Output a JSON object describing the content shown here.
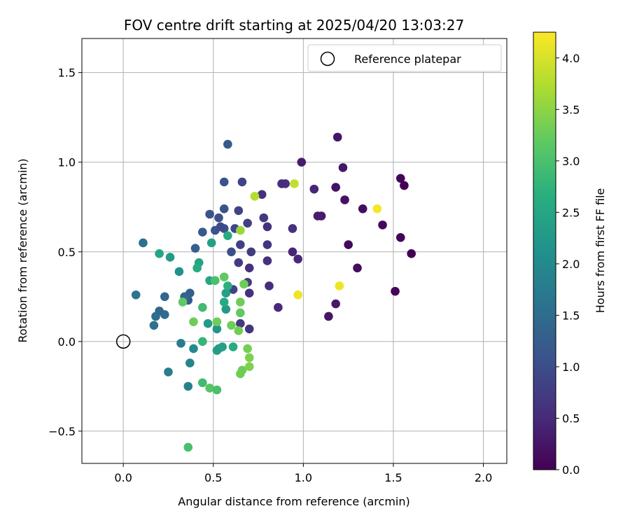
{
  "chart_data": {
    "type": "scatter",
    "title": "FOV centre drift starting at 2025/04/20 13:03:27",
    "xlabel": "Angular distance from reference (arcmin)",
    "ylabel": "Rotation from reference (arcmin)",
    "xlim": [
      -0.23,
      2.13
    ],
    "ylim": [
      -0.68,
      1.69
    ],
    "xticks": [
      0.0,
      0.5,
      1.0,
      1.5,
      2.0
    ],
    "xtick_labels": [
      "0.0",
      "0.5",
      "1.0",
      "1.5",
      "2.0"
    ],
    "yticks": [
      -0.5,
      0.0,
      0.5,
      1.0,
      1.5
    ],
    "ytick_labels": [
      "−0.5",
      "0.0",
      "0.5",
      "1.0",
      "1.5"
    ],
    "grid": true,
    "legend": {
      "placement": "top-right",
      "entries": [
        "Reference platepar"
      ]
    },
    "reference_point": {
      "x": 0.0,
      "y": 0.0,
      "label": "Reference platepar"
    },
    "colorbar": {
      "label": "Hours from first FF file",
      "colormap": "viridis",
      "range": [
        0.0,
        4.25
      ],
      "ticks": [
        0.0,
        0.5,
        1.0,
        1.5,
        2.0,
        2.5,
        3.0,
        3.5,
        4.0
      ],
      "tick_labels": [
        "0.0",
        "0.5",
        "1.0",
        "1.5",
        "2.0",
        "2.5",
        "3.0",
        "3.5",
        "4.0"
      ]
    },
    "points": [
      {
        "x": 1.6,
        "y": 0.49,
        "c": 0.0
      },
      {
        "x": 1.56,
        "y": 0.87,
        "c": 0.0
      },
      {
        "x": 1.54,
        "y": 0.91,
        "c": 0.05
      },
      {
        "x": 1.54,
        "y": 0.58,
        "c": 0.05
      },
      {
        "x": 1.51,
        "y": 0.28,
        "c": 0.05
      },
      {
        "x": 1.44,
        "y": 0.65,
        "c": 0.1
      },
      {
        "x": 1.33,
        "y": 0.74,
        "c": 0.15
      },
      {
        "x": 1.3,
        "y": 0.41,
        "c": 0.15
      },
      {
        "x": 1.25,
        "y": 0.54,
        "c": 0.1
      },
      {
        "x": 1.23,
        "y": 0.79,
        "c": 0.2
      },
      {
        "x": 1.22,
        "y": 0.97,
        "c": 0.25
      },
      {
        "x": 1.19,
        "y": 1.14,
        "c": 0.25
      },
      {
        "x": 1.18,
        "y": 0.86,
        "c": 0.2
      },
      {
        "x": 1.18,
        "y": 0.21,
        "c": 0.3
      },
      {
        "x": 1.14,
        "y": 0.14,
        "c": 0.25
      },
      {
        "x": 1.1,
        "y": 0.7,
        "c": 0.3
      },
      {
        "x": 1.08,
        "y": 0.7,
        "c": 0.35
      },
      {
        "x": 1.06,
        "y": 0.85,
        "c": 0.45
      },
      {
        "x": 0.99,
        "y": 1.0,
        "c": 0.35
      },
      {
        "x": 0.97,
        "y": 0.46,
        "c": 0.5
      },
      {
        "x": 0.94,
        "y": 0.5,
        "c": 0.45
      },
      {
        "x": 0.94,
        "y": 0.63,
        "c": 0.6
      },
      {
        "x": 0.9,
        "y": 0.88,
        "c": 0.6
      },
      {
        "x": 0.88,
        "y": 0.88,
        "c": 0.55
      },
      {
        "x": 0.86,
        "y": 0.19,
        "c": 0.5
      },
      {
        "x": 0.81,
        "y": 0.31,
        "c": 0.55
      },
      {
        "x": 0.8,
        "y": 0.64,
        "c": 0.6
      },
      {
        "x": 0.8,
        "y": 0.54,
        "c": 0.65
      },
      {
        "x": 0.8,
        "y": 0.45,
        "c": 0.6
      },
      {
        "x": 0.78,
        "y": 0.69,
        "c": 0.7
      },
      {
        "x": 0.77,
        "y": 0.82,
        "c": 0.6
      },
      {
        "x": 0.71,
        "y": 0.5,
        "c": 0.75
      },
      {
        "x": 0.7,
        "y": 0.41,
        "c": 0.6
      },
      {
        "x": 0.7,
        "y": 0.27,
        "c": 0.6
      },
      {
        "x": 0.7,
        "y": 0.07,
        "c": 0.65
      },
      {
        "x": 0.69,
        "y": 0.66,
        "c": 0.8
      },
      {
        "x": 0.69,
        "y": 0.33,
        "c": 0.75
      },
      {
        "x": 0.66,
        "y": 0.89,
        "c": 0.85
      },
      {
        "x": 0.65,
        "y": 0.54,
        "c": 0.8
      },
      {
        "x": 0.65,
        "y": 0.1,
        "c": 0.7
      },
      {
        "x": 0.64,
        "y": 0.73,
        "c": 0.85
      },
      {
        "x": 0.64,
        "y": 0.44,
        "c": 0.75
      },
      {
        "x": 0.62,
        "y": 0.63,
        "c": 0.9
      },
      {
        "x": 0.61,
        "y": 0.29,
        "c": 0.85
      },
      {
        "x": 0.6,
        "y": 0.5,
        "c": 1.0
      },
      {
        "x": 0.58,
        "y": 1.1,
        "c": 1.2
      },
      {
        "x": 0.56,
        "y": 0.89,
        "c": 1.1
      },
      {
        "x": 0.56,
        "y": 0.74,
        "c": 1.1
      },
      {
        "x": 0.56,
        "y": 0.63,
        "c": 1.0
      },
      {
        "x": 0.54,
        "y": 0.64,
        "c": 0.95
      },
      {
        "x": 0.53,
        "y": 0.69,
        "c": 1.05
      },
      {
        "x": 0.51,
        "y": 0.62,
        "c": 1.1
      },
      {
        "x": 0.48,
        "y": 0.71,
        "c": 1.1
      },
      {
        "x": 0.44,
        "y": 0.61,
        "c": 1.2
      },
      {
        "x": 0.4,
        "y": 0.52,
        "c": 1.3
      },
      {
        "x": 0.37,
        "y": 0.27,
        "c": 1.3
      },
      {
        "x": 0.36,
        "y": 0.23,
        "c": 1.2
      },
      {
        "x": 0.34,
        "y": 0.25,
        "c": 1.4
      },
      {
        "x": 0.23,
        "y": 0.25,
        "c": 1.4
      },
      {
        "x": 0.23,
        "y": 0.15,
        "c": 1.5
      },
      {
        "x": 0.2,
        "y": 0.17,
        "c": 1.4
      },
      {
        "x": 0.18,
        "y": 0.14,
        "c": 1.5
      },
      {
        "x": 0.17,
        "y": 0.09,
        "c": 1.6
      },
      {
        "x": 0.11,
        "y": 0.55,
        "c": 1.55
      },
      {
        "x": 0.07,
        "y": 0.26,
        "c": 1.65
      },
      {
        "x": 0.25,
        "y": -0.17,
        "c": 1.8
      },
      {
        "x": 0.32,
        "y": -0.01,
        "c": 1.75
      },
      {
        "x": 0.36,
        "y": -0.25,
        "c": 1.85
      },
      {
        "x": 0.37,
        "y": -0.12,
        "c": 1.9
      },
      {
        "x": 0.39,
        "y": -0.04,
        "c": 2.0
      },
      {
        "x": 0.31,
        "y": 0.39,
        "c": 2.1
      },
      {
        "x": 0.26,
        "y": 0.47,
        "c": 2.3
      },
      {
        "x": 0.2,
        "y": 0.49,
        "c": 2.5
      },
      {
        "x": 0.42,
        "y": 0.44,
        "c": 2.45
      },
      {
        "x": 0.41,
        "y": 0.41,
        "c": 2.6
      },
      {
        "x": 0.47,
        "y": 0.1,
        "c": 2.3
      },
      {
        "x": 0.48,
        "y": 0.34,
        "c": 2.5
      },
      {
        "x": 0.49,
        "y": 0.55,
        "c": 2.4
      },
      {
        "x": 0.52,
        "y": 0.07,
        "c": 2.2
      },
      {
        "x": 0.52,
        "y": -0.05,
        "c": 2.4
      },
      {
        "x": 0.53,
        "y": -0.04,
        "c": 2.3
      },
      {
        "x": 0.55,
        "y": -0.03,
        "c": 2.4
      },
      {
        "x": 0.57,
        "y": 0.18,
        "c": 2.3
      },
      {
        "x": 0.57,
        "y": 0.27,
        "c": 2.4
      },
      {
        "x": 0.56,
        "y": 0.22,
        "c": 2.6
      },
      {
        "x": 0.58,
        "y": 0.31,
        "c": 2.7
      },
      {
        "x": 0.58,
        "y": 0.59,
        "c": 2.6
      },
      {
        "x": 0.61,
        "y": -0.03,
        "c": 2.6
      },
      {
        "x": 0.44,
        "y": 0.0,
        "c": 2.8
      },
      {
        "x": 0.44,
        "y": 0.19,
        "c": 2.9
      },
      {
        "x": 0.44,
        "y": -0.23,
        "c": 2.9
      },
      {
        "x": 0.48,
        "y": -0.26,
        "c": 3.1
      },
      {
        "x": 0.52,
        "y": -0.27,
        "c": 3.0
      },
      {
        "x": 0.51,
        "y": 0.34,
        "c": 3.0
      },
      {
        "x": 0.56,
        "y": 0.36,
        "c": 3.2
      },
      {
        "x": 0.33,
        "y": 0.22,
        "c": 3.2
      },
      {
        "x": 0.39,
        "y": 0.11,
        "c": 3.3
      },
      {
        "x": 0.36,
        "y": -0.59,
        "c": 3.0
      },
      {
        "x": 0.52,
        "y": 0.11,
        "c": 3.3
      },
      {
        "x": 0.6,
        "y": 0.09,
        "c": 3.3
      },
      {
        "x": 0.64,
        "y": 0.06,
        "c": 3.3
      },
      {
        "x": 0.65,
        "y": 0.16,
        "c": 3.2
      },
      {
        "x": 0.65,
        "y": 0.22,
        "c": 3.3
      },
      {
        "x": 0.67,
        "y": 0.32,
        "c": 3.3
      },
      {
        "x": 0.66,
        "y": -0.16,
        "c": 3.3
      },
      {
        "x": 0.65,
        "y": -0.18,
        "c": 3.3
      },
      {
        "x": 0.69,
        "y": -0.04,
        "c": 3.35
      },
      {
        "x": 0.7,
        "y": -0.09,
        "c": 3.4
      },
      {
        "x": 0.7,
        "y": -0.14,
        "c": 3.4
      },
      {
        "x": 0.65,
        "y": 0.62,
        "c": 3.6
      },
      {
        "x": 0.73,
        "y": 0.81,
        "c": 3.75
      },
      {
        "x": 0.95,
        "y": 0.88,
        "c": 3.85
      },
      {
        "x": 0.97,
        "y": 0.26,
        "c": 4.15
      },
      {
        "x": 1.2,
        "y": 0.31,
        "c": 4.15
      },
      {
        "x": 1.41,
        "y": 0.74,
        "c": 4.2
      }
    ]
  }
}
